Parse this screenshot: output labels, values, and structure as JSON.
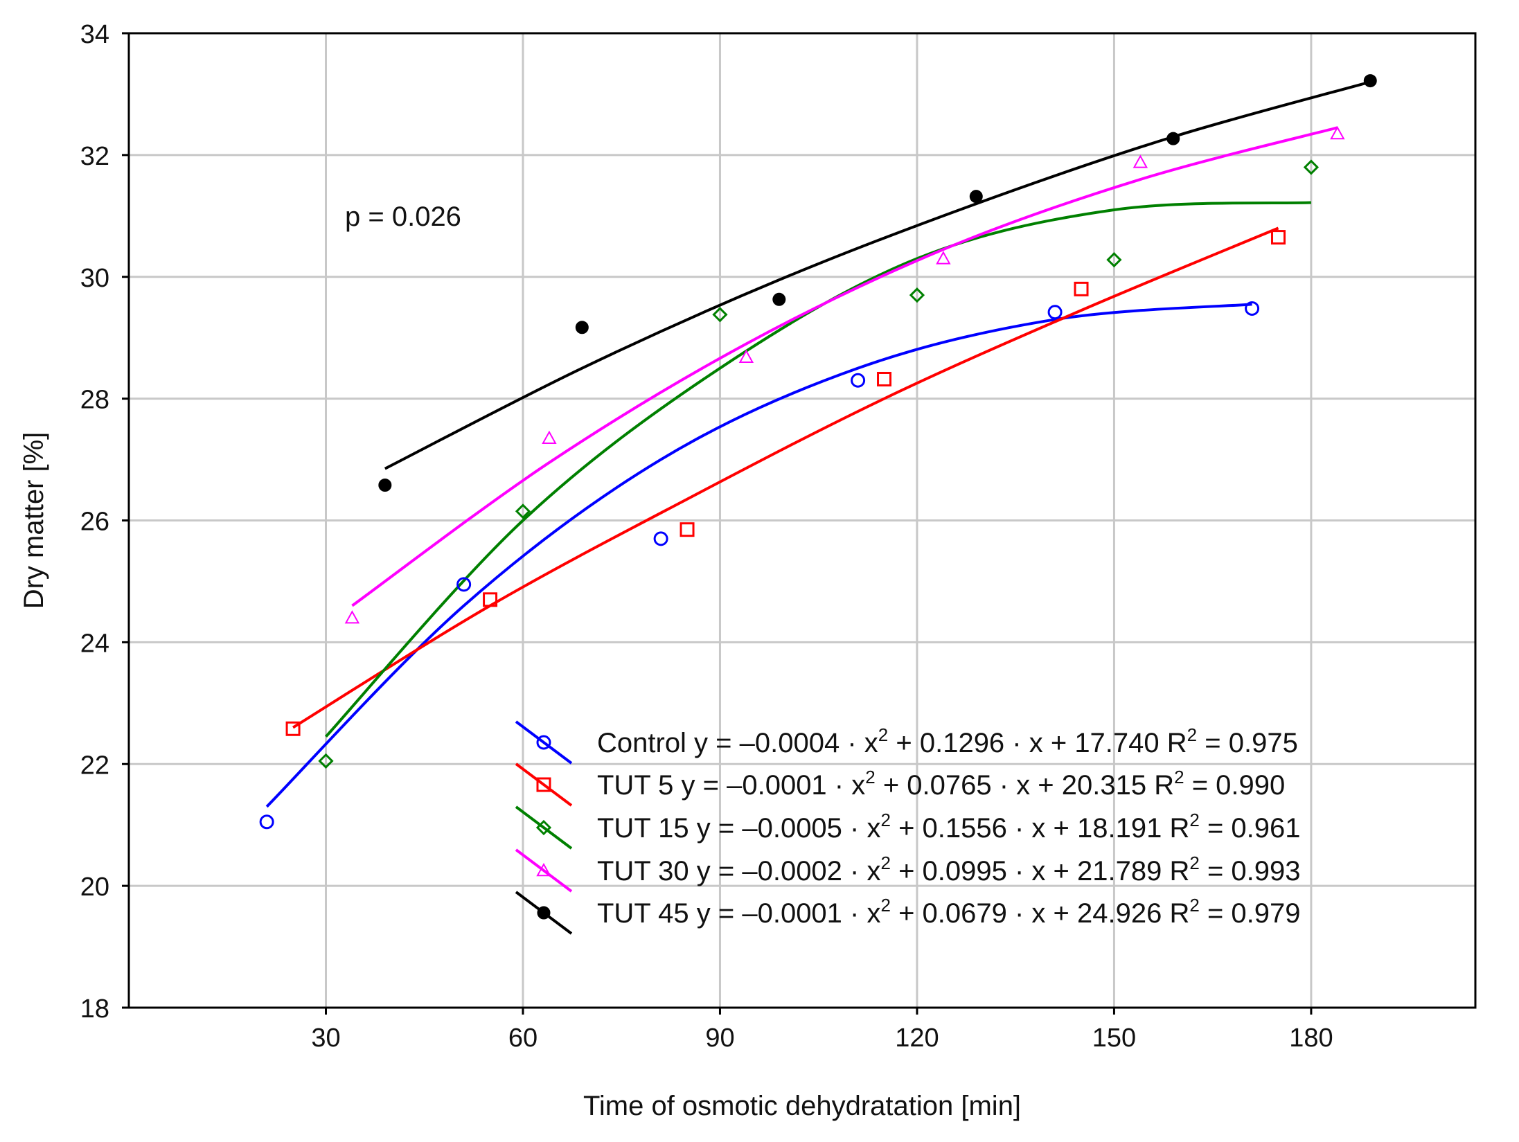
{
  "chart_data": {
    "type": "scatter",
    "title": "",
    "xlabel": "Time of osmotic dehydratation [min]",
    "ylabel": "Dry matter [%]",
    "xlim": [
      0,
      205
    ],
    "ylim": [
      18,
      34
    ],
    "xticks": [
      30,
      60,
      90,
      120,
      150,
      180
    ],
    "yticks": [
      18,
      20,
      22,
      24,
      26,
      28,
      30,
      32,
      34
    ],
    "grid": true,
    "annotation": "p = 0.026",
    "legend_position": "bottom-right",
    "series": [
      {
        "name": "Control",
        "equation": "Control y = –0.0004 · x² + 0.1296 · x + 17.740 R² = 0.975",
        "eq_text": "Control y = –0.0004 · x",
        "eq_mid": " + 0.1296 · x + 17.740 R",
        "eq_end": " = 0.975",
        "color": "#0000ff",
        "marker": "circle",
        "x": [
          21,
          51,
          81,
          111,
          141,
          171
        ],
        "y": [
          21.05,
          24.95,
          25.7,
          28.3,
          29.42,
          29.48
        ],
        "fit_x_range": [
          21,
          171
        ],
        "fit_points": [
          [
            21,
            21.3
          ],
          [
            51,
            24.6
          ],
          [
            81,
            27.0
          ],
          [
            111,
            28.5
          ],
          [
            141,
            29.3
          ],
          [
            171,
            29.55
          ]
        ]
      },
      {
        "name": "TUT 5",
        "equation": "TUT 5 y = –0.0001 · x² + 0.0765 · x + 20.315 R² = 0.990",
        "eq_text": "TUT 5 y = –0.0001 · x",
        "eq_mid": " + 0.0765 · x + 20.315 R",
        "eq_end": " = 0.990",
        "color": "#ff0000",
        "marker": "square",
        "x": [
          25,
          55,
          85,
          115,
          145,
          175
        ],
        "y": [
          22.58,
          24.7,
          25.85,
          28.32,
          29.8,
          30.65
        ],
        "fit_x_range": [
          25,
          175
        ],
        "fit_points": [
          [
            25,
            22.6
          ],
          [
            55,
            24.6
          ],
          [
            85,
            26.35
          ],
          [
            115,
            28.0
          ],
          [
            145,
            29.45
          ],
          [
            175,
            30.8
          ]
        ]
      },
      {
        "name": "TUT 15",
        "equation": "TUT 15 y = –0.0005 · x² + 0.1556 · x + 18.191 R² = 0.961",
        "eq_text": "TUT 15 y = –0.0005 · x",
        "eq_mid": " + 0.1556 · x + 18.191 R",
        "eq_end": " = 0.961",
        "color": "#008000",
        "marker": "diamond",
        "x": [
          30,
          60,
          90,
          120,
          150,
          180
        ],
        "y": [
          22.05,
          26.15,
          29.38,
          29.7,
          30.28,
          31.8
        ],
        "fit_x_range": [
          30,
          180
        ],
        "fit_points": [
          [
            30,
            22.45
          ],
          [
            60,
            26.0
          ],
          [
            90,
            28.5
          ],
          [
            120,
            30.3
          ],
          [
            150,
            31.1
          ],
          [
            180,
            31.22
          ]
        ]
      },
      {
        "name": "TUT 30",
        "equation": "TUT 30 y = –0.0002 · x² + 0.0995 · x + 21.789 R² = 0.993",
        "eq_text": "TUT 30 y = –0.0002 · x",
        "eq_mid": " + 0.0995 · x + 21.789 R",
        "eq_end": " = 0.993",
        "color": "#ff00ff",
        "marker": "triangle",
        "x": [
          34,
          64,
          94,
          124,
          154,
          184
        ],
        "y": [
          24.4,
          27.35,
          28.68,
          30.3,
          31.88,
          32.35
        ],
        "fit_x_range": [
          34,
          184
        ],
        "fit_points": [
          [
            34,
            24.6
          ],
          [
            64,
            26.95
          ],
          [
            94,
            28.9
          ],
          [
            124,
            30.45
          ],
          [
            154,
            31.6
          ],
          [
            184,
            32.45
          ]
        ]
      },
      {
        "name": "TUT 45",
        "equation": "TUT 45 y = –0.0001 · x² + 0.0679 · x + 24.926 R² = 0.979",
        "eq_text": "TUT 45 y = –0.0001 · x",
        "eq_mid": " + 0.0679 · x + 24.926 R",
        "eq_end": " = 0.979",
        "color": "#000000",
        "marker": "filled-circle",
        "x": [
          39,
          69,
          99,
          129,
          159,
          189
        ],
        "y": [
          26.58,
          29.17,
          29.63,
          31.32,
          32.27,
          33.22
        ],
        "fit_x_range": [
          39,
          189
        ],
        "fit_points": [
          [
            39,
            26.85
          ],
          [
            69,
            28.5
          ],
          [
            99,
            29.95
          ],
          [
            129,
            31.2
          ],
          [
            159,
            32.3
          ],
          [
            189,
            33.2
          ]
        ]
      }
    ]
  }
}
